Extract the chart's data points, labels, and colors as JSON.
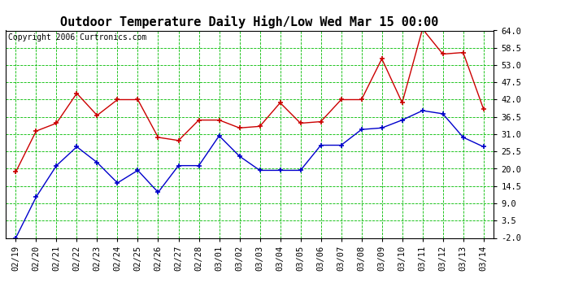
{
  "title": "Outdoor Temperature Daily High/Low Wed Mar 15 00:00",
  "copyright": "Copyright 2006 Curtronics.com",
  "x_labels": [
    "02/19",
    "02/20",
    "02/21",
    "02/22",
    "02/23",
    "02/24",
    "02/25",
    "02/26",
    "02/27",
    "02/28",
    "03/01",
    "03/02",
    "03/03",
    "03/04",
    "03/05",
    "03/06",
    "03/07",
    "03/08",
    "03/09",
    "03/10",
    "03/11",
    "03/12",
    "03/13",
    "03/14"
  ],
  "high_values": [
    19.0,
    32.0,
    34.5,
    44.0,
    37.0,
    42.0,
    42.0,
    30.0,
    29.0,
    35.5,
    35.5,
    33.0,
    33.5,
    41.0,
    34.5,
    35.0,
    42.0,
    42.0,
    55.0,
    41.0,
    64.5,
    56.5,
    57.0,
    39.0
  ],
  "low_values": [
    -2.0,
    11.0,
    21.0,
    27.0,
    22.0,
    15.5,
    19.5,
    12.5,
    21.0,
    21.0,
    30.5,
    24.0,
    19.5,
    19.5,
    19.5,
    27.5,
    27.5,
    32.5,
    33.0,
    35.5,
    38.5,
    37.5,
    30.0,
    27.0
  ],
  "y_ticks": [
    -2.0,
    3.5,
    9.0,
    14.5,
    20.0,
    25.5,
    31.0,
    36.5,
    42.0,
    47.5,
    53.0,
    58.5,
    64.0
  ],
  "y_min": -2.0,
  "y_max": 64.0,
  "high_color": "#cc0000",
  "low_color": "#0000cc",
  "grid_color": "#00bb00",
  "bg_color": "#ffffff",
  "plot_bg_color": "#ffffff",
  "title_fontsize": 11,
  "tick_fontsize": 7.5,
  "copyright_fontsize": 7.0
}
